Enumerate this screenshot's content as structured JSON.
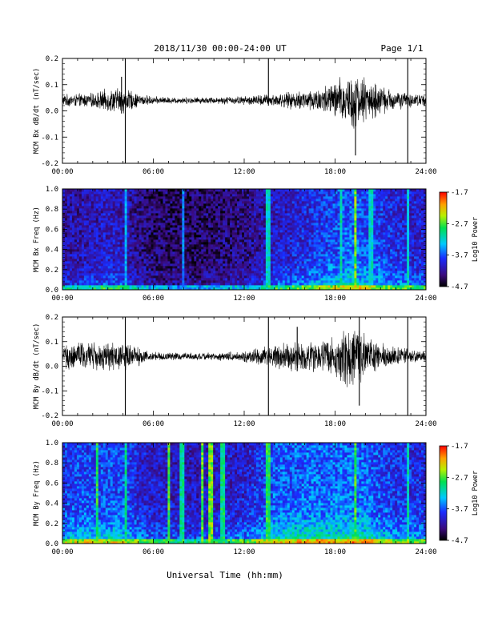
{
  "header": {
    "date_range": "2018/11/30  00:00-24:00 UT",
    "page": "Page 1/1"
  },
  "xlabel": "Universal Time (hh:mm)",
  "chart_data": [
    {
      "type": "line",
      "ylabel": "MCM Bx dB/dt (nT/sec)",
      "xlim": [
        0,
        24
      ],
      "ylim": [
        -0.2,
        0.2
      ],
      "x_tick_labels": [
        "00:00",
        "06:00",
        "12:00",
        "18:00",
        "24:00"
      ],
      "y_tick_labels": [
        "0.2",
        "0.1",
        "0.0",
        "-0.1",
        "-0.2"
      ],
      "baseline": 0.04,
      "envelope": {
        "hours": [
          0,
          1,
          2,
          3,
          4,
          5,
          6,
          7,
          8,
          9,
          10,
          11,
          12,
          13,
          14,
          15,
          16,
          17,
          18,
          19,
          20,
          21,
          22,
          23,
          24
        ],
        "amplitude": [
          0.018,
          0.02,
          0.022,
          0.035,
          0.04,
          0.02,
          0.012,
          0.01,
          0.01,
          0.01,
          0.01,
          0.012,
          0.013,
          0.018,
          0.02,
          0.025,
          0.032,
          0.04,
          0.06,
          0.09,
          0.07,
          0.045,
          0.03,
          0.022,
          0.018
        ]
      },
      "spikes": [
        {
          "hour": 4.15,
          "min": -0.2,
          "max": 0.2
        },
        {
          "hour": 13.6,
          "min": 0.02,
          "max": 0.2
        },
        {
          "hour": 22.8,
          "min": -0.2,
          "max": 0.2
        },
        {
          "hour": 19.35,
          "min": -0.17,
          "max": 0.1
        },
        {
          "hour": 3.9,
          "min": -0.01,
          "max": 0.13
        }
      ]
    },
    {
      "type": "heatmap",
      "ylabel": "MCM Bx Freq (Hz)",
      "xlim": [
        0,
        24
      ],
      "ylim": [
        0,
        1
      ],
      "x_tick_labels": [
        "00:00",
        "06:00",
        "12:00",
        "18:00",
        "24:00"
      ],
      "y_tick_labels": [
        "1.0",
        "0.8",
        "0.6",
        "0.4",
        "0.2",
        "0.0"
      ],
      "colorbar": {
        "label": "Log10 Power",
        "range": [
          -4.7,
          -1.7
        ],
        "tick_labels": [
          "-1.7",
          "-2.7",
          "-3.7",
          "-4.7"
        ]
      },
      "activity": {
        "hours": [
          0,
          1,
          2,
          3,
          4,
          5,
          6,
          7,
          8,
          9,
          10,
          11,
          12,
          13,
          14,
          15,
          16,
          17,
          18,
          19,
          20,
          21,
          22,
          23,
          24
        ],
        "level": [
          0.3,
          0.32,
          0.34,
          0.38,
          0.36,
          0.25,
          0.2,
          0.18,
          0.18,
          0.18,
          0.2,
          0.22,
          0.24,
          0.3,
          0.38,
          0.4,
          0.45,
          0.5,
          0.55,
          0.6,
          0.55,
          0.5,
          0.45,
          0.42,
          0.4
        ]
      },
      "bright_bands": [
        {
          "hour": 4.15,
          "power": -3.2
        },
        {
          "hour": 13.6,
          "power": -3.0
        },
        {
          "hour": 18.4,
          "power": -2.9
        },
        {
          "hour": 19.35,
          "power": -2.3
        },
        {
          "hour": 20.4,
          "power": -3.0
        },
        {
          "hour": 22.8,
          "power": -3.0
        },
        {
          "hour": 8.0,
          "power": -3.4
        }
      ]
    },
    {
      "type": "line",
      "ylabel": "MCM By dB/dt (nT/sec)",
      "xlim": [
        0,
        24
      ],
      "ylim": [
        -0.2,
        0.2
      ],
      "x_tick_labels": [
        "00:00",
        "06:00",
        "12:00",
        "18:00",
        "24:00"
      ],
      "y_tick_labels": [
        "0.2",
        "0.1",
        "0.0",
        "-0.1",
        "-0.2"
      ],
      "baseline": 0.04,
      "envelope": {
        "hours": [
          0,
          1,
          2,
          3,
          4,
          5,
          6,
          7,
          8,
          9,
          10,
          11,
          12,
          13,
          14,
          15,
          16,
          17,
          18,
          19,
          20,
          21,
          22,
          23,
          24
        ],
        "amplitude": [
          0.035,
          0.05,
          0.045,
          0.045,
          0.05,
          0.03,
          0.015,
          0.012,
          0.012,
          0.012,
          0.012,
          0.015,
          0.018,
          0.028,
          0.04,
          0.045,
          0.05,
          0.055,
          0.065,
          0.1,
          0.07,
          0.045,
          0.03,
          0.022,
          0.018
        ]
      },
      "spikes": [
        {
          "hour": 4.15,
          "min": -0.2,
          "max": 0.2
        },
        {
          "hour": 13.6,
          "min": -0.2,
          "max": 0.2
        },
        {
          "hour": 22.8,
          "min": -0.2,
          "max": 0.2
        },
        {
          "hour": 19.6,
          "min": -0.16,
          "max": 0.2
        },
        {
          "hour": 15.5,
          "min": -0.02,
          "max": 0.16
        }
      ]
    },
    {
      "type": "heatmap",
      "ylabel": "MCM By Freq (Hz)",
      "xlim": [
        0,
        24
      ],
      "ylim": [
        0,
        1
      ],
      "x_tick_labels": [
        "00:00",
        "06:00",
        "12:00",
        "18:00",
        "24:00"
      ],
      "y_tick_labels": [
        "1.0",
        "0.8",
        "0.6",
        "0.4",
        "0.2",
        "0.0"
      ],
      "colorbar": {
        "label": "Log10 Power",
        "range": [
          -4.7,
          -1.7
        ],
        "tick_labels": [
          "-1.7",
          "-2.7",
          "-3.7",
          "-4.7"
        ]
      },
      "activity": {
        "hours": [
          0,
          1,
          2,
          3,
          4,
          5,
          6,
          7,
          8,
          9,
          10,
          11,
          12,
          13,
          14,
          15,
          16,
          17,
          18,
          19,
          20,
          21,
          22,
          23,
          24
        ],
        "level": [
          0.5,
          0.55,
          0.55,
          0.55,
          0.55,
          0.45,
          0.38,
          0.38,
          0.36,
          0.36,
          0.38,
          0.4,
          0.42,
          0.5,
          0.6,
          0.6,
          0.62,
          0.62,
          0.62,
          0.65,
          0.62,
          0.55,
          0.5,
          0.48,
          0.45
        ]
      },
      "bright_bands": [
        {
          "hour": 2.3,
          "power": -2.6
        },
        {
          "hour": 4.15,
          "power": -2.8
        },
        {
          "hour": 7.0,
          "power": -2.5
        },
        {
          "hour": 7.9,
          "power": -2.8
        },
        {
          "hour": 9.2,
          "power": -2.4
        },
        {
          "hour": 9.8,
          "power": -2.3
        },
        {
          "hour": 10.6,
          "power": -2.7
        },
        {
          "hour": 13.6,
          "power": -2.6
        },
        {
          "hour": 19.35,
          "power": -2.5
        },
        {
          "hour": 22.8,
          "power": -2.9
        }
      ]
    }
  ]
}
